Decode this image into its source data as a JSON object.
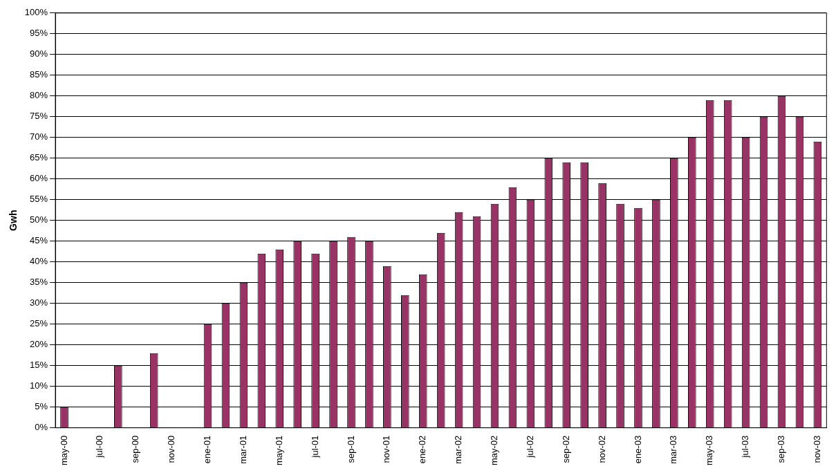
{
  "chart_data": {
    "type": "bar",
    "ylabel": "Gwh",
    "categories": [
      "may-00",
      null,
      "jul-00",
      null,
      "sep-00",
      null,
      "nov-00",
      null,
      "ene-01",
      null,
      "mar-01",
      null,
      "may-01",
      null,
      "jul-01",
      null,
      "sep-01",
      null,
      "nov-01",
      null,
      "ene-02",
      null,
      "mar-02",
      null,
      "may-02",
      null,
      "jul-02",
      null,
      "sep-02",
      null,
      "nov-02",
      null,
      "ene-03",
      null,
      "mar-03",
      null,
      "may-03",
      null,
      "jul-03",
      null,
      "sep-03",
      null,
      "nov-03"
    ],
    "values": [
      5,
      null,
      null,
      15,
      null,
      18,
      null,
      null,
      25,
      30,
      35,
      42,
      43,
      45,
      42,
      45,
      46,
      45,
      39,
      32,
      37,
      47,
      52,
      51,
      54,
      58,
      55,
      65,
      64,
      64,
      59,
      54,
      53,
      55,
      65,
      70,
      79,
      79,
      70,
      75,
      80,
      75,
      69
    ],
    "color": "#993366",
    "ylim": [
      0,
      100
    ],
    "yticks": [
      {
        "value": 0,
        "label": "0%"
      },
      {
        "value": 5,
        "label": "5%"
      },
      {
        "value": 10,
        "label": "10%"
      },
      {
        "value": 15,
        "label": "15%"
      },
      {
        "value": 20,
        "label": "20%"
      },
      {
        "value": 25,
        "label": "25%"
      },
      {
        "value": 30,
        "label": "30%"
      },
      {
        "value": 35,
        "label": "35%"
      },
      {
        "value": 40,
        "label": "40%"
      },
      {
        "value": 45,
        "label": "45%"
      },
      {
        "value": 50,
        "label": "50%"
      },
      {
        "value": 55,
        "label": "55%"
      },
      {
        "value": 60,
        "label": "60%"
      },
      {
        "value": 65,
        "label": "65%"
      },
      {
        "value": 70,
        "label": "70%"
      },
      {
        "value": 75,
        "label": "75%"
      },
      {
        "value": 80,
        "label": "80%"
      },
      {
        "value": 85,
        "label": "85%"
      },
      {
        "value": 90,
        "label": "90%"
      },
      {
        "value": 95,
        "label": "95%"
      },
      {
        "value": 100,
        "label": "100%"
      }
    ],
    "grid": "y",
    "legend": false
  }
}
